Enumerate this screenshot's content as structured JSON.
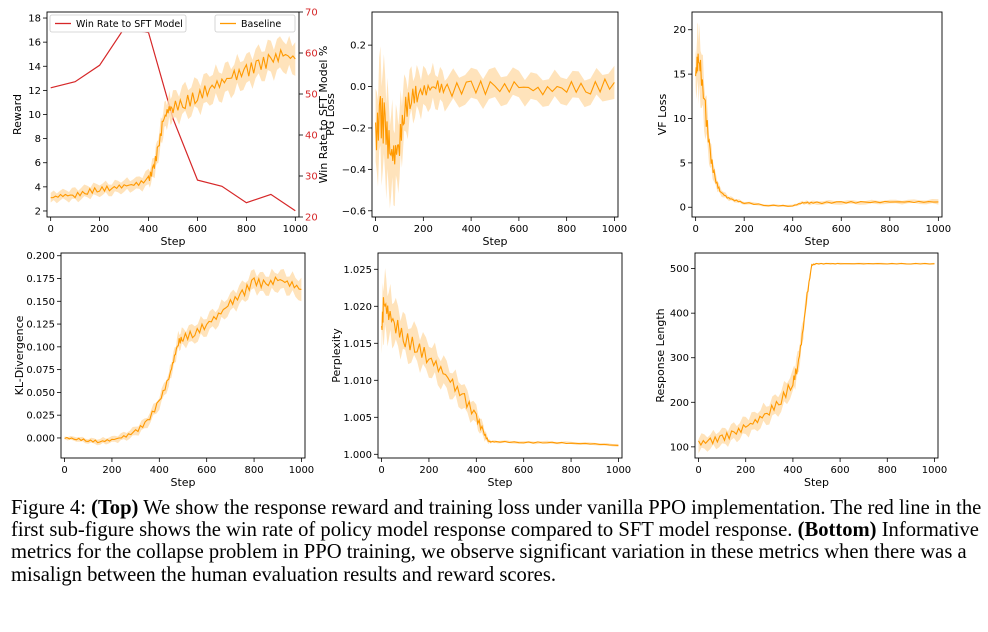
{
  "caption": {
    "figure_label": "Figure 4:",
    "top_label": "(Top)",
    "top_text": "We show the response reward and training loss under vanilla PPO implementation. The red line in the first sub-figure shows the win rate of policy model response compared to SFT model response.",
    "bottom_label": "(Bottom)",
    "bottom_text": "Informative metrics for the collapse problem in PPO training, we observe significant variation in these metrics when there was a misalign between the human evaluation results and reward scores."
  },
  "colors": {
    "baseline": "#ff9900",
    "band": "#ffdcaa",
    "winrate": "#d62728",
    "right_axis": "#d62728"
  },
  "chart_data": [
    {
      "id": "reward",
      "type": "line",
      "xlabel": "Step",
      "ylabel": "Reward",
      "y2label": "Win Rate to SFT Model %",
      "xlim": [
        -15,
        1015
      ],
      "ylim": [
        1.5,
        18.5
      ],
      "y2lim": [
        20,
        70
      ],
      "xticks": [
        0,
        200,
        400,
        600,
        800,
        1000
      ],
      "yticks": [
        2,
        4,
        6,
        8,
        10,
        12,
        14,
        16,
        18
      ],
      "y2ticks": [
        20,
        30,
        40,
        50,
        60,
        70
      ],
      "legend": [
        "Win Rate to SFT Model",
        "Baseline"
      ],
      "series": [
        {
          "name": "Win Rate to SFT Model",
          "axis": "right",
          "color": "winrate",
          "x": [
            0,
            100,
            200,
            300,
            400,
            500,
            600,
            700,
            800,
            900,
            1000
          ],
          "y": [
            51.5,
            53,
            57,
            66,
            65,
            44,
            29,
            27.5,
            23.5,
            25.5,
            21.5
          ]
        },
        {
          "name": "Baseline",
          "axis": "left",
          "color": "baseline",
          "band": true,
          "x": [
            0,
            50,
            100,
            150,
            200,
            250,
            300,
            350,
            400,
            420,
            440,
            460,
            480,
            500,
            550,
            600,
            650,
            700,
            750,
            800,
            850,
            900,
            950,
            1000
          ],
          "y": [
            3.1,
            3.3,
            3.3,
            3.6,
            3.8,
            3.9,
            4.1,
            4.2,
            4.6,
            5.5,
            7.2,
            9.5,
            10.4,
            10.6,
            11.0,
            11.5,
            12.2,
            12.7,
            13.2,
            13.6,
            14.1,
            14.5,
            15.0,
            14.6
          ],
          "spread": [
            0.5,
            0.5,
            0.6,
            0.6,
            0.6,
            0.6,
            0.6,
            0.6,
            0.8,
            1.0,
            1.2,
            1.3,
            1.3,
            1.4,
            1.5,
            1.5,
            1.5,
            1.5,
            1.5,
            1.5,
            1.5,
            1.6,
            1.6,
            1.4
          ]
        }
      ]
    },
    {
      "id": "pg_loss",
      "type": "line",
      "xlabel": "Step",
      "ylabel": "PG Loss",
      "xlim": [
        -15,
        1015
      ],
      "ylim": [
        -0.63,
        0.36
      ],
      "xticks": [
        0,
        200,
        400,
        600,
        800,
        1000
      ],
      "yticks": [
        -0.6,
        -0.4,
        -0.2,
        0.0,
        0.2
      ],
      "ytick_labels": [
        "−0.6",
        "−0.4",
        "−0.2",
        "0.0",
        "0.2"
      ],
      "series": [
        {
          "name": "Baseline",
          "color": "baseline",
          "band": true,
          "x": [
            0,
            20,
            40,
            60,
            80,
            100,
            120,
            150,
            180,
            220,
            260,
            300,
            400,
            500,
            600,
            700,
            800,
            900,
            1000
          ],
          "y": [
            -0.25,
            -0.14,
            -0.19,
            -0.32,
            -0.33,
            -0.27,
            -0.12,
            -0.05,
            -0.03,
            -0.01,
            0.0,
            -0.02,
            0.0,
            -0.01,
            0.0,
            -0.02,
            0.0,
            -0.01,
            0.02
          ],
          "spread": [
            0.22,
            0.3,
            0.3,
            0.25,
            0.22,
            0.2,
            0.17,
            0.13,
            0.12,
            0.11,
            0.1,
            0.09,
            0.09,
            0.09,
            0.08,
            0.08,
            0.08,
            0.08,
            0.08
          ]
        }
      ]
    },
    {
      "id": "vf_loss",
      "type": "line",
      "xlabel": "Step",
      "ylabel": "VF Loss",
      "xlim": [
        -15,
        1015
      ],
      "ylim": [
        -1.1,
        22.0
      ],
      "xticks": [
        0,
        200,
        400,
        600,
        800,
        1000
      ],
      "yticks": [
        0,
        5,
        10,
        15,
        20
      ],
      "series": [
        {
          "name": "Baseline",
          "color": "baseline",
          "band": true,
          "x": [
            0,
            10,
            20,
            40,
            60,
            80,
            100,
            130,
            160,
            200,
            300,
            400,
            440,
            460,
            500,
            600,
            700,
            800,
            900,
            1000
          ],
          "y": [
            15,
            16.8,
            15.5,
            11,
            6,
            3.2,
            1.8,
            1.1,
            0.8,
            0.5,
            0.2,
            0.15,
            0.5,
            0.5,
            0.5,
            0.55,
            0.55,
            0.6,
            0.6,
            0.6
          ],
          "spread": [
            2.5,
            4.5,
            4.0,
            3.0,
            1.8,
            0.9,
            0.5,
            0.3,
            0.25,
            0.2,
            0.15,
            0.15,
            0.2,
            0.25,
            0.25,
            0.25,
            0.25,
            0.25,
            0.25,
            0.3
          ]
        }
      ]
    },
    {
      "id": "kl_divergence",
      "type": "line",
      "xlabel": "Step",
      "ylabel": "KL-Divergence",
      "xlim": [
        -15,
        1015
      ],
      "ylim": [
        -0.022,
        0.203
      ],
      "xticks": [
        0,
        200,
        400,
        600,
        800,
        1000
      ],
      "yticks": [
        0,
        0.025,
        0.05,
        0.075,
        0.1,
        0.125,
        0.15,
        0.175,
        0.2
      ],
      "ytick_labels": [
        "0.000",
        "0.025",
        "0.050",
        "0.075",
        "0.100",
        "0.125",
        "0.150",
        "0.175",
        "0.200"
      ],
      "series": [
        {
          "name": "Baseline",
          "color": "baseline",
          "band": true,
          "x": [
            0,
            50,
            100,
            150,
            200,
            250,
            300,
            350,
            400,
            440,
            460,
            480,
            500,
            550,
            600,
            650,
            700,
            750,
            800,
            850,
            900,
            950,
            1000
          ],
          "y": [
            0.0,
            -0.001,
            -0.003,
            -0.004,
            -0.002,
            0.001,
            0.007,
            0.018,
            0.04,
            0.065,
            0.085,
            0.105,
            0.11,
            0.115,
            0.125,
            0.135,
            0.148,
            0.158,
            0.172,
            0.168,
            0.174,
            0.17,
            0.163
          ],
          "spread": [
            0.002,
            0.003,
            0.003,
            0.004,
            0.004,
            0.005,
            0.006,
            0.007,
            0.008,
            0.009,
            0.01,
            0.011,
            0.011,
            0.012,
            0.012,
            0.012,
            0.012,
            0.013,
            0.013,
            0.013,
            0.013,
            0.013,
            0.013
          ]
        }
      ]
    },
    {
      "id": "perplexity",
      "type": "line",
      "xlabel": "Step",
      "ylabel": "Perplexity",
      "xlim": [
        -15,
        1015
      ],
      "ylim": [
        0.9995,
        1.0272
      ],
      "xticks": [
        0,
        200,
        400,
        600,
        800,
        1000
      ],
      "yticks": [
        1.0,
        1.005,
        1.01,
        1.015,
        1.02,
        1.025
      ],
      "ytick_labels": [
        "1.000",
        "1.005",
        "1.010",
        "1.015",
        "1.020",
        "1.025"
      ],
      "series": [
        {
          "name": "Baseline",
          "color": "baseline",
          "band": true,
          "x": [
            0,
            10,
            30,
            60,
            100,
            150,
            200,
            250,
            300,
            350,
            400,
            430,
            450,
            460,
            500,
            600,
            700,
            800,
            900,
            1000
          ],
          "y": [
            1.0168,
            1.0205,
            1.019,
            1.0175,
            1.0155,
            1.0145,
            1.013,
            1.0115,
            1.0095,
            1.0075,
            1.005,
            1.003,
            1.0018,
            1.0017,
            1.0017,
            1.0016,
            1.0016,
            1.0015,
            1.0014,
            1.0012
          ],
          "spread": [
            0.003,
            0.005,
            0.004,
            0.0035,
            0.003,
            0.0028,
            0.0026,
            0.0024,
            0.0022,
            0.002,
            0.0015,
            0.001,
            0.0004,
            0.0002,
            0.0002,
            0.0002,
            0.0002,
            0.0002,
            0.0002,
            0.0002
          ]
        }
      ]
    },
    {
      "id": "response_length",
      "type": "line",
      "xlabel": "Step",
      "ylabel": "Response Length",
      "xlim": [
        -15,
        1015
      ],
      "ylim": [
        75,
        535
      ],
      "xticks": [
        0,
        200,
        400,
        600,
        800,
        1000
      ],
      "yticks": [
        100,
        200,
        300,
        400,
        500
      ],
      "series": [
        {
          "name": "Baseline",
          "color": "baseline",
          "band": true,
          "x": [
            0,
            50,
            100,
            150,
            200,
            250,
            300,
            350,
            400,
            420,
            440,
            460,
            480,
            500,
            550,
            600,
            700,
            800,
            900,
            1000
          ],
          "y": [
            108,
            113,
            120,
            130,
            145,
            160,
            180,
            205,
            245,
            280,
            350,
            440,
            508,
            511,
            511,
            511,
            511,
            511,
            511,
            511
          ],
          "spread": [
            20,
            20,
            22,
            22,
            24,
            25,
            26,
            28,
            30,
            30,
            28,
            20,
            3,
            2,
            2,
            2,
            2,
            2,
            2,
            2
          ]
        }
      ]
    }
  ]
}
